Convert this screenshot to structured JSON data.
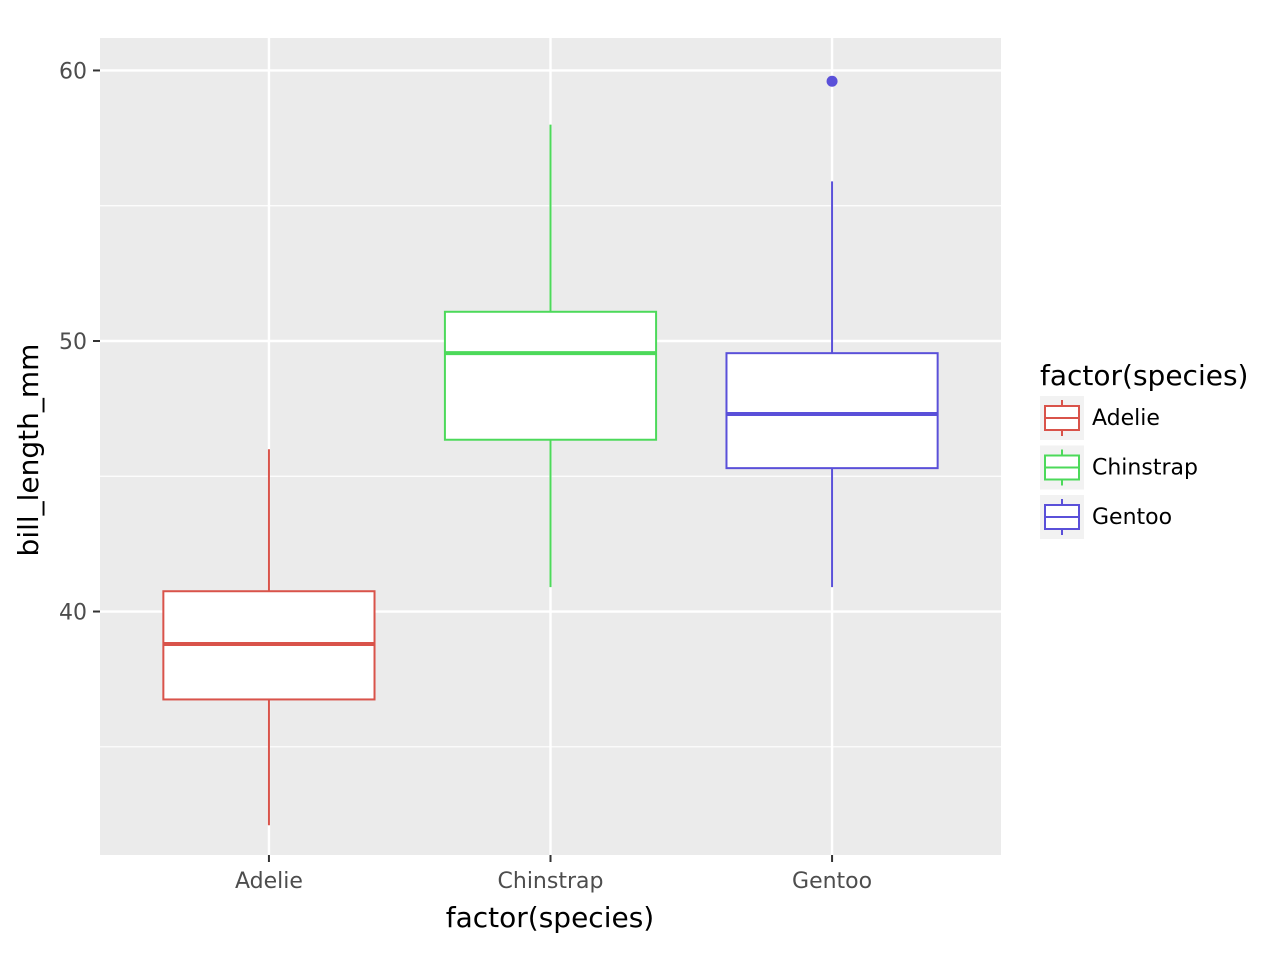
{
  "chart_data": {
    "type": "boxplot",
    "xlabel": "factor(species)",
    "ylabel": "bill_length_mm",
    "categories": [
      "Adelie",
      "Chinstrap",
      "Gentoo"
    ],
    "ylim": [
      31,
      61.2
    ],
    "yticks": [
      40,
      50,
      60
    ],
    "yticks_labels": [
      "40",
      "50",
      "60"
    ],
    "grid": true,
    "series": [
      {
        "category": "Adelie",
        "color": "#d9534a",
        "whisker_low": 32.1,
        "q1": 36.75,
        "median": 38.8,
        "q3": 40.75,
        "whisker_high": 46.0,
        "outliers": []
      },
      {
        "category": "Chinstrap",
        "color": "#4cd95a",
        "whisker_low": 40.9,
        "q1": 46.35,
        "median": 49.55,
        "q3": 51.08,
        "whisker_high": 58.0,
        "outliers": []
      },
      {
        "category": "Gentoo",
        "color": "#5a50d9",
        "whisker_low": 40.9,
        "q1": 45.3,
        "median": 47.3,
        "q3": 49.55,
        "whisker_high": 55.9,
        "outliers": [
          59.6
        ]
      }
    ],
    "legend": {
      "title": "factor(species)",
      "position": "right",
      "entries": [
        "Adelie",
        "Chinstrap",
        "Gentoo"
      ]
    }
  }
}
